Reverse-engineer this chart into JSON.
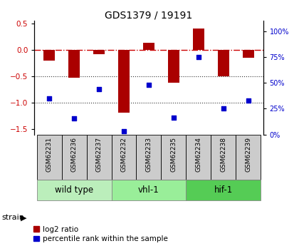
{
  "title": "GDS1379 / 19191",
  "samples": [
    "GSM62231",
    "GSM62236",
    "GSM62237",
    "GSM62232",
    "GSM62233",
    "GSM62235",
    "GSM62234",
    "GSM62238",
    "GSM62239"
  ],
  "log2_ratio": [
    -0.2,
    -0.53,
    -0.08,
    -1.18,
    0.13,
    -0.62,
    0.4,
    -0.5,
    -0.15
  ],
  "percentile_rank": [
    32,
    14,
    40,
    3,
    44,
    15,
    68,
    23,
    30
  ],
  "groups": [
    {
      "label": "wild type",
      "start": 0,
      "end": 3,
      "color": "#bbeebb"
    },
    {
      "label": "vhl-1",
      "start": 3,
      "end": 6,
      "color": "#99ee99"
    },
    {
      "label": "hif-1",
      "start": 6,
      "end": 9,
      "color": "#55cc55"
    }
  ],
  "ylim_left": [
    -1.6,
    0.55
  ],
  "ylim_right": [
    0,
    110
  ],
  "bar_color": "#aa0000",
  "dot_color": "#0000cc",
  "hline_color": "#cc0000",
  "dotline_color": "#333333",
  "bar_width": 0.45,
  "tick_label_fontsize": 6.5,
  "legend_fontsize": 7.5,
  "title_fontsize": 10,
  "group_label_fontsize": 8.5,
  "strain_label_fontsize": 8
}
